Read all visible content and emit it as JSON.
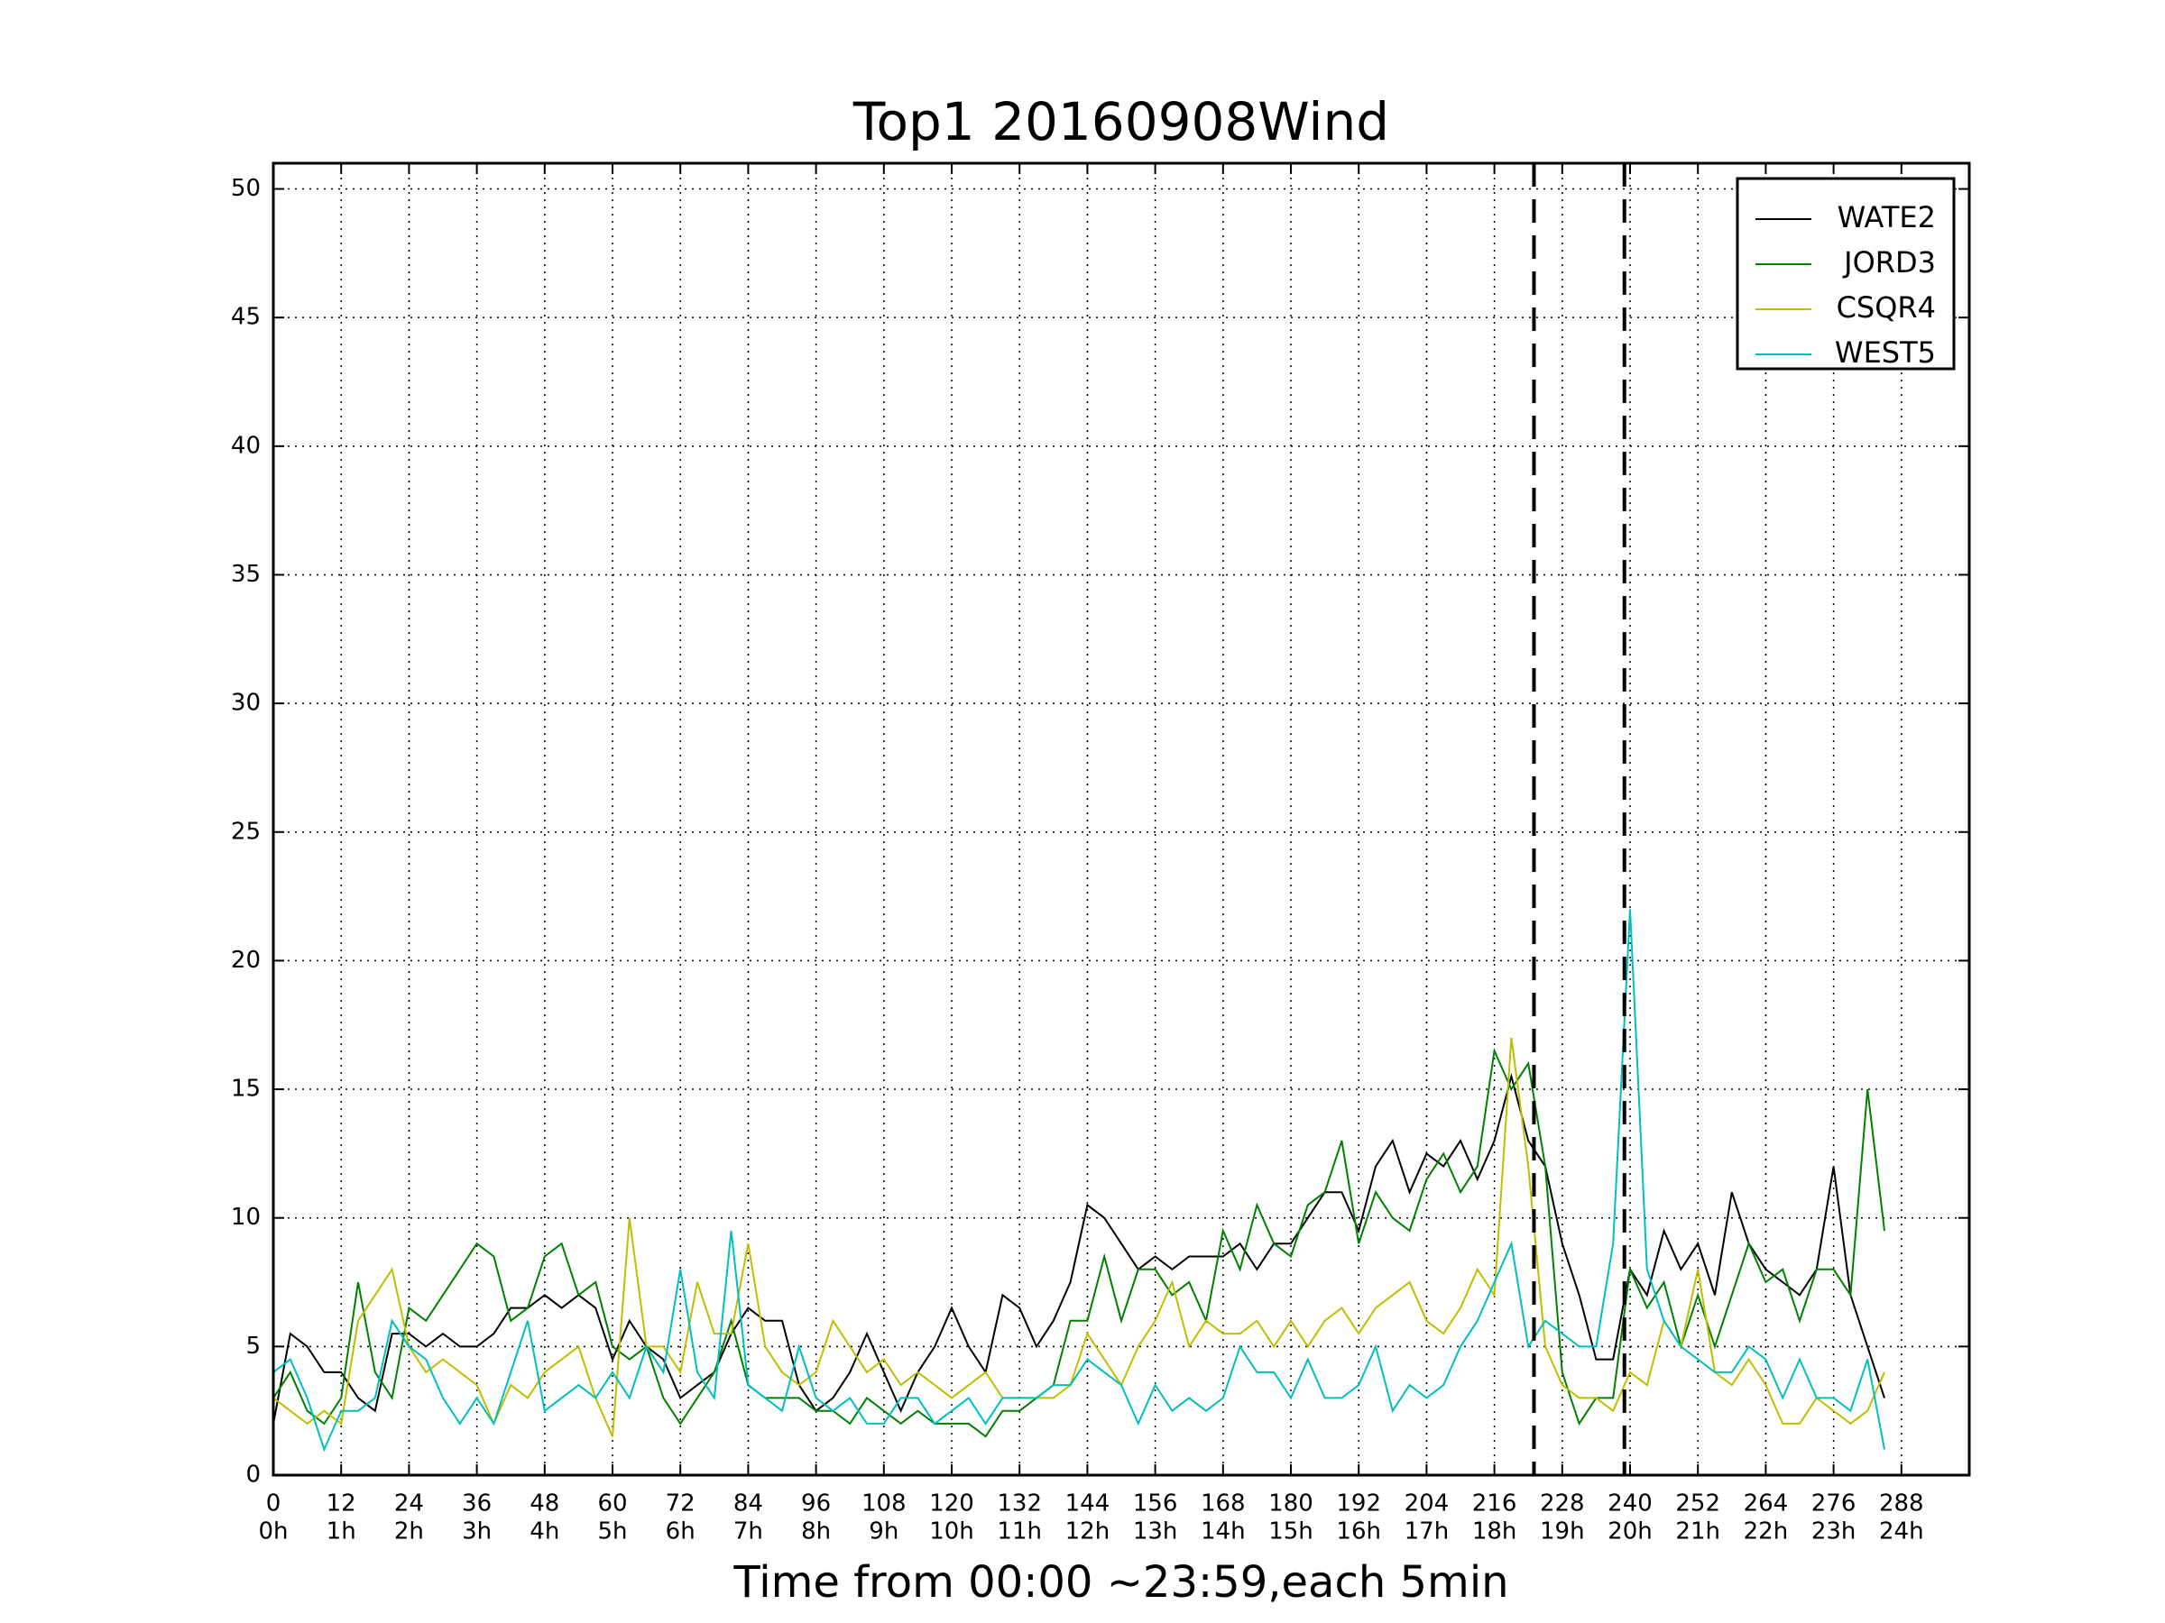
{
  "chart_data": {
    "type": "line",
    "title": "Top1 20160908Wind",
    "x_label": "Time from 00:00 ~23:59,each 5min",
    "x": [
      0,
      3,
      6,
      9,
      12,
      15,
      18,
      21,
      24,
      27,
      30,
      33,
      36,
      39,
      42,
      45,
      48,
      51,
      54,
      57,
      60,
      63,
      66,
      69,
      72,
      75,
      78,
      81,
      84,
      87,
      90,
      93,
      96,
      99,
      102,
      105,
      108,
      111,
      114,
      117,
      120,
      123,
      126,
      129,
      132,
      135,
      138,
      141,
      144,
      147,
      150,
      153,
      156,
      159,
      162,
      165,
      168,
      171,
      174,
      177,
      180,
      183,
      186,
      189,
      192,
      195,
      198,
      201,
      204,
      207,
      210,
      213,
      216,
      219,
      222,
      225,
      228,
      231,
      234,
      237,
      240,
      243,
      246,
      249,
      252,
      255,
      258,
      261,
      264,
      267,
      270,
      273,
      276,
      279,
      282,
      285
    ],
    "series": [
      {
        "name": "WATE2",
        "color": "#000000",
        "values": [
          2,
          5.5,
          5,
          4,
          4,
          3,
          2.5,
          5.5,
          5.5,
          5,
          5.5,
          5,
          5,
          5.5,
          6.5,
          6.5,
          7,
          6.5,
          7,
          6.5,
          4.5,
          6,
          5,
          4.5,
          3,
          3.5,
          4,
          5.5,
          6.5,
          6,
          6,
          3.5,
          2.5,
          3,
          4,
          5.5,
          4,
          2.5,
          4,
          5,
          6.5,
          5,
          4,
          7,
          6.5,
          5,
          6,
          7.5,
          10.5,
          10,
          9,
          8,
          8.5,
          8,
          8.5,
          8.5,
          8.5,
          9,
          8,
          9,
          9,
          10,
          11,
          11,
          9.5,
          12,
          13,
          11,
          12.5,
          12,
          13,
          11.5,
          13,
          15.5,
          13,
          12,
          9,
          7,
          4.5,
          4.5,
          8,
          7,
          9.5,
          8,
          9,
          7,
          11,
          9,
          8,
          7.5,
          7,
          8,
          12,
          7,
          5,
          3
        ]
      },
      {
        "name": "JORD3",
        "color": "#008000",
        "values": [
          3,
          4,
          2.5,
          2,
          3,
          7.5,
          4,
          3,
          6.5,
          6,
          7,
          8,
          9,
          8.5,
          6,
          6.5,
          8.5,
          9,
          7,
          7.5,
          5,
          4.5,
          5,
          3,
          2,
          3,
          4,
          6,
          3.5,
          3,
          3,
          3,
          2.5,
          2.5,
          2,
          3,
          2.5,
          2,
          2.5,
          2,
          2,
          2,
          1.5,
          2.5,
          2.5,
          3,
          3.5,
          6,
          6,
          8.5,
          6,
          8,
          8,
          7,
          7.5,
          6,
          9.5,
          8,
          10.5,
          9,
          8.5,
          10.5,
          11,
          13,
          9,
          11,
          10,
          9.5,
          11.5,
          12.5,
          11,
          12,
          16.5,
          15,
          16,
          12,
          4,
          2,
          3,
          3,
          8,
          6.5,
          7.5,
          5,
          7,
          5,
          7,
          9,
          7.5,
          8,
          6,
          8,
          8,
          7,
          15,
          9.5
        ]
      },
      {
        "name": "CSQR4",
        "color": "#bfbf00",
        "values": [
          3,
          2.5,
          2,
          2.5,
          2,
          6,
          7,
          8,
          5,
          4,
          4.5,
          4,
          3.5,
          2,
          3.5,
          3,
          4,
          4.5,
          5,
          3,
          1.5,
          10,
          5,
          5,
          4,
          7.5,
          5.5,
          5.5,
          9,
          5,
          4,
          3.5,
          4,
          6,
          5,
          4,
          4.5,
          3.5,
          4,
          3.5,
          3,
          3.5,
          4,
          3,
          3,
          3,
          3,
          3.5,
          5.5,
          4.5,
          3.5,
          5,
          6,
          7.5,
          5,
          6,
          5.5,
          5.5,
          6,
          5,
          6,
          5,
          6,
          6.5,
          5.5,
          6.5,
          7,
          7.5,
          6,
          5.5,
          6.5,
          8,
          7,
          17,
          12,
          5,
          3.5,
          3,
          3,
          2.5,
          4,
          3.5,
          6,
          5,
          8,
          4,
          3.5,
          4.5,
          3.5,
          2,
          2,
          3,
          2.5,
          2,
          2.5,
          4
        ]
      },
      {
        "name": "WEST5",
        "color": "#00bfbf",
        "values": [
          4,
          4.5,
          3,
          1,
          2.5,
          2.5,
          3,
          6,
          5,
          4.5,
          3,
          2,
          3,
          2,
          4,
          6,
          2.5,
          3,
          3.5,
          3,
          4,
          3,
          5,
          4,
          8,
          4,
          3,
          9.5,
          3.5,
          3,
          2.5,
          5,
          3,
          2.5,
          3,
          2,
          2,
          3,
          3,
          2,
          2.5,
          3,
          2,
          3,
          3,
          3,
          3.5,
          3.5,
          4.5,
          4,
          3.5,
          2,
          3.5,
          2.5,
          3,
          2.5,
          3,
          5,
          4,
          4,
          3,
          4.5,
          3,
          3,
          3.5,
          5,
          2.5,
          3.5,
          3,
          3.5,
          5,
          6,
          7.5,
          9,
          5,
          6,
          5.5,
          5,
          5,
          9,
          22,
          8,
          6,
          5,
          4.5,
          4,
          4,
          5,
          4.5,
          3,
          4.5,
          3,
          3,
          2.5,
          4.5,
          1
        ]
      }
    ],
    "xlim": [
      0,
      300
    ],
    "ylim": [
      0,
      51
    ],
    "xticks": [
      0,
      12,
      24,
      36,
      48,
      60,
      72,
      84,
      96,
      108,
      120,
      132,
      144,
      156,
      168,
      180,
      192,
      204,
      216,
      228,
      240,
      252,
      264,
      276,
      288
    ],
    "xtick_hours": [
      "0h",
      "1h",
      "2h",
      "3h",
      "4h",
      "5h",
      "6h",
      "7h",
      "8h",
      "9h",
      "10h",
      "11h",
      "12h",
      "13h",
      "14h",
      "15h",
      "16h",
      "17h",
      "18h",
      "19h",
      "20h",
      "21h",
      "22h",
      "23h",
      "24h"
    ],
    "yticks": [
      0,
      5,
      10,
      15,
      20,
      25,
      30,
      35,
      40,
      45,
      50
    ],
    "vlines": [
      223,
      239
    ],
    "grid": true,
    "legend": "upper right"
  }
}
